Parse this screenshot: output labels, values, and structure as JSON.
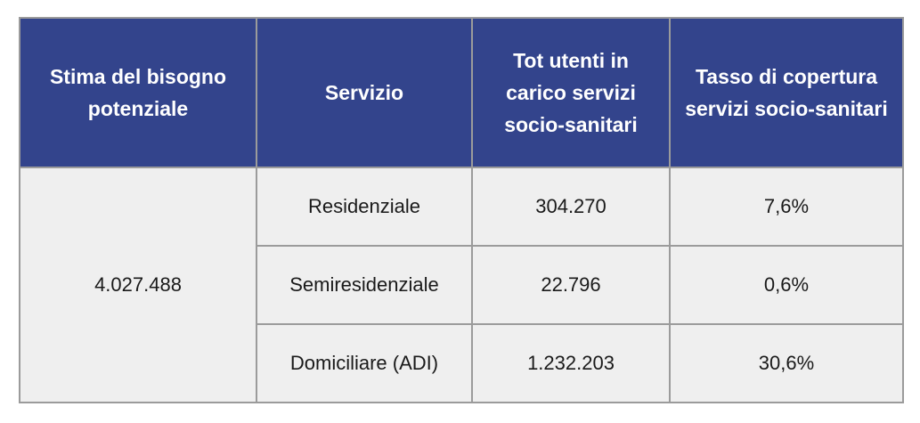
{
  "table": {
    "headers": [
      "Stima del bisogno potenziale",
      "Servizio",
      "Tot utenti in carico servizi socio-sanitari",
      "Tasso di copertura servizi socio-sanitari"
    ],
    "stima_value": "4.027.488",
    "rows": [
      {
        "servizio": "Residenziale",
        "tot_utenti": "304.270",
        "tasso": "7,6%"
      },
      {
        "servizio": "Semiresidenziale",
        "tot_utenti": "22.796",
        "tasso": "0,6%"
      },
      {
        "servizio": "Domiciliare (ADI)",
        "tot_utenti": "1.232.203",
        "tasso": "30,6%"
      }
    ]
  },
  "colors": {
    "header_bg": "#33448c",
    "cell_bg": "#efefef",
    "border": "#9b9b9b"
  }
}
